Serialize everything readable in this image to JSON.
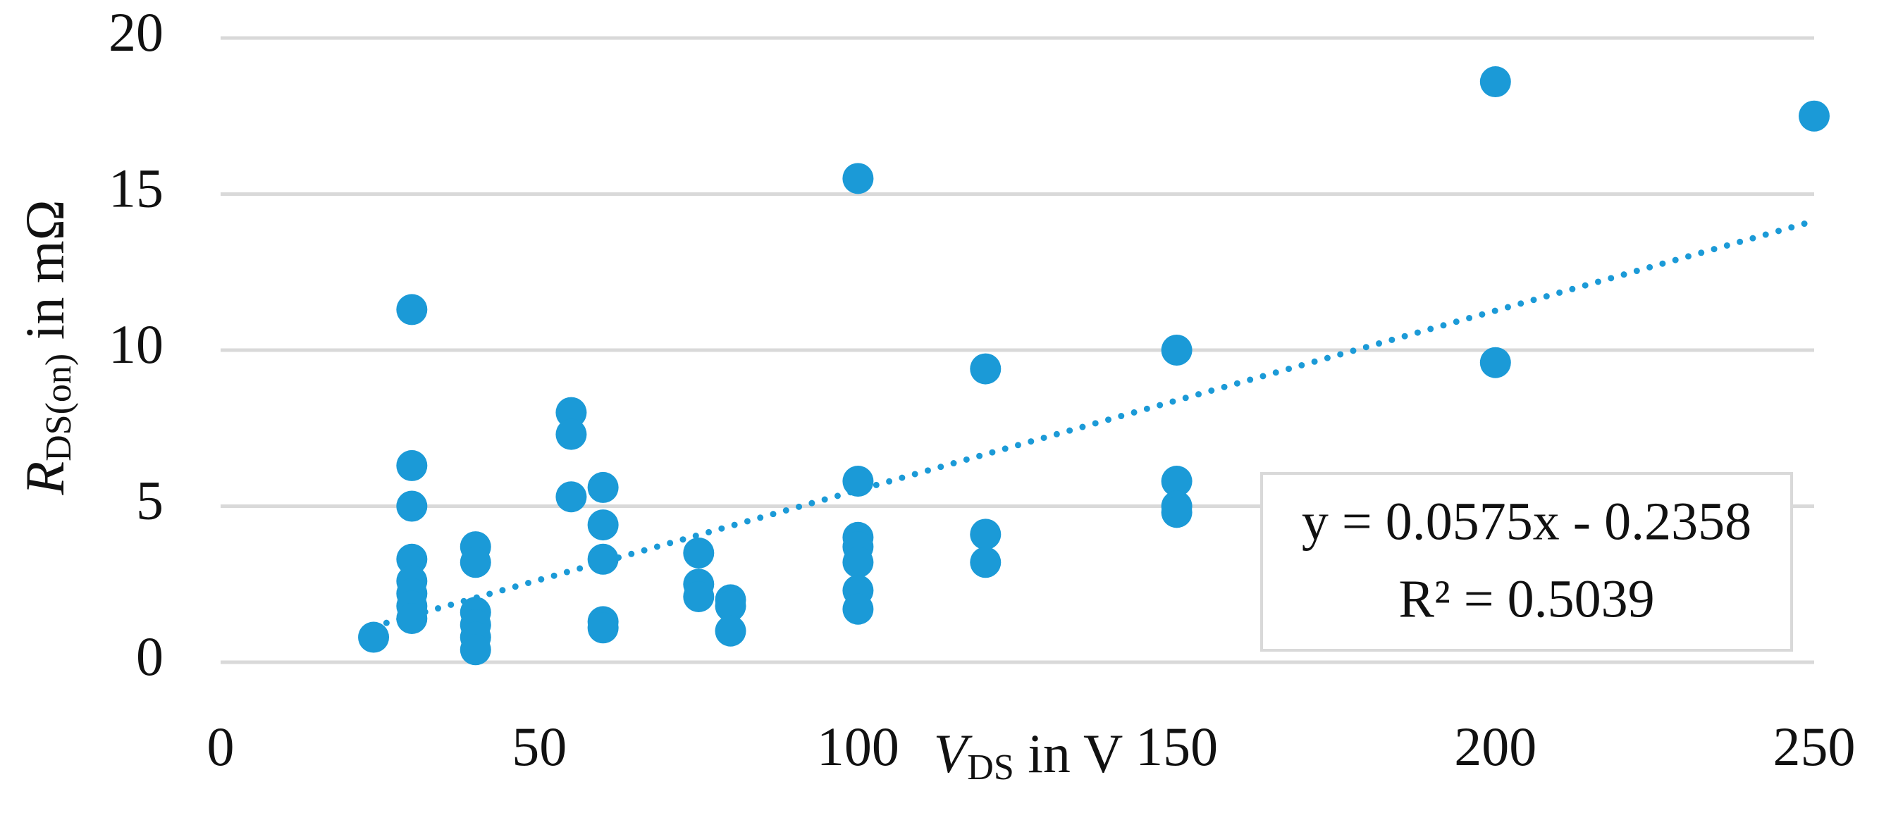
{
  "chart_data": {
    "type": "scatter",
    "color": "#1b9ad7",
    "x_label": {
      "main": "V",
      "sub": "DS",
      "rest": " in V"
    },
    "y_label": {
      "main": "R",
      "sub": "DS(on)",
      "rest": " in mΩ"
    },
    "x": [
      24,
      30,
      30,
      30,
      30,
      30,
      30,
      30,
      30,
      40,
      40,
      40,
      40,
      40,
      40,
      55,
      55,
      55,
      60,
      60,
      60,
      60,
      60,
      75,
      75,
      75,
      80,
      80,
      80,
      100,
      100,
      100,
      100,
      100,
      100,
      100,
      120,
      120,
      120,
      150,
      150,
      150,
      150,
      200,
      200,
      250
    ],
    "values": [
      0.8,
      11.3,
      6.3,
      5.0,
      3.3,
      2.6,
      2.2,
      1.8,
      1.4,
      3.7,
      3.2,
      1.6,
      1.2,
      0.8,
      0.4,
      8.0,
      7.3,
      5.3,
      5.6,
      4.4,
      3.3,
      1.3,
      1.1,
      3.5,
      2.5,
      2.1,
      2.0,
      1.8,
      1.0,
      15.5,
      5.8,
      4.0,
      3.7,
      3.2,
      2.3,
      1.7,
      9.4,
      4.1,
      3.2,
      10.0,
      5.8,
      5.0,
      4.8,
      18.6,
      9.6,
      17.5
    ],
    "xlim": [
      0,
      250
    ],
    "xticks": [
      0,
      50,
      100,
      150,
      200,
      250
    ],
    "ylim": [
      0,
      20
    ],
    "yticks": [
      0,
      5,
      10,
      15,
      20
    ],
    "grid": true,
    "trendline": {
      "slope": 0.0575,
      "intercept": -0.2358,
      "xrange": [
        24,
        250
      ],
      "style": "dotted",
      "equation": "y = 0.0575x - 0.2358",
      "r2": "R² = 0.5039"
    }
  }
}
